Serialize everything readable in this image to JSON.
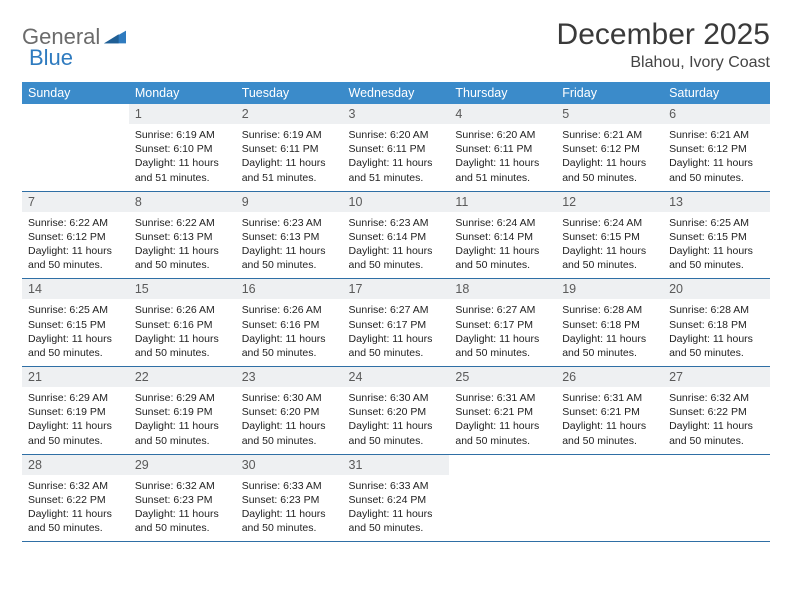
{
  "logo": {
    "text1": "General",
    "text2": "Blue"
  },
  "title": "December 2025",
  "location": "Blahou, Ivory Coast",
  "colors": {
    "header_bg": "#3b8bca",
    "header_fg": "#ffffff",
    "daynum_bg": "#eef0f2",
    "row_border": "#2f6fa5",
    "logo_gray": "#6b6b6b",
    "logo_blue": "#2f7bbf"
  },
  "days": [
    "Sunday",
    "Monday",
    "Tuesday",
    "Wednesday",
    "Thursday",
    "Friday",
    "Saturday"
  ],
  "weeks": [
    [
      null,
      {
        "n": "1",
        "sr": "Sunrise: 6:19 AM",
        "ss": "Sunset: 6:10 PM",
        "d1": "Daylight: 11 hours",
        "d2": "and 51 minutes."
      },
      {
        "n": "2",
        "sr": "Sunrise: 6:19 AM",
        "ss": "Sunset: 6:11 PM",
        "d1": "Daylight: 11 hours",
        "d2": "and 51 minutes."
      },
      {
        "n": "3",
        "sr": "Sunrise: 6:20 AM",
        "ss": "Sunset: 6:11 PM",
        "d1": "Daylight: 11 hours",
        "d2": "and 51 minutes."
      },
      {
        "n": "4",
        "sr": "Sunrise: 6:20 AM",
        "ss": "Sunset: 6:11 PM",
        "d1": "Daylight: 11 hours",
        "d2": "and 51 minutes."
      },
      {
        "n": "5",
        "sr": "Sunrise: 6:21 AM",
        "ss": "Sunset: 6:12 PM",
        "d1": "Daylight: 11 hours",
        "d2": "and 50 minutes."
      },
      {
        "n": "6",
        "sr": "Sunrise: 6:21 AM",
        "ss": "Sunset: 6:12 PM",
        "d1": "Daylight: 11 hours",
        "d2": "and 50 minutes."
      }
    ],
    [
      {
        "n": "7",
        "sr": "Sunrise: 6:22 AM",
        "ss": "Sunset: 6:12 PM",
        "d1": "Daylight: 11 hours",
        "d2": "and 50 minutes."
      },
      {
        "n": "8",
        "sr": "Sunrise: 6:22 AM",
        "ss": "Sunset: 6:13 PM",
        "d1": "Daylight: 11 hours",
        "d2": "and 50 minutes."
      },
      {
        "n": "9",
        "sr": "Sunrise: 6:23 AM",
        "ss": "Sunset: 6:13 PM",
        "d1": "Daylight: 11 hours",
        "d2": "and 50 minutes."
      },
      {
        "n": "10",
        "sr": "Sunrise: 6:23 AM",
        "ss": "Sunset: 6:14 PM",
        "d1": "Daylight: 11 hours",
        "d2": "and 50 minutes."
      },
      {
        "n": "11",
        "sr": "Sunrise: 6:24 AM",
        "ss": "Sunset: 6:14 PM",
        "d1": "Daylight: 11 hours",
        "d2": "and 50 minutes."
      },
      {
        "n": "12",
        "sr": "Sunrise: 6:24 AM",
        "ss": "Sunset: 6:15 PM",
        "d1": "Daylight: 11 hours",
        "d2": "and 50 minutes."
      },
      {
        "n": "13",
        "sr": "Sunrise: 6:25 AM",
        "ss": "Sunset: 6:15 PM",
        "d1": "Daylight: 11 hours",
        "d2": "and 50 minutes."
      }
    ],
    [
      {
        "n": "14",
        "sr": "Sunrise: 6:25 AM",
        "ss": "Sunset: 6:15 PM",
        "d1": "Daylight: 11 hours",
        "d2": "and 50 minutes."
      },
      {
        "n": "15",
        "sr": "Sunrise: 6:26 AM",
        "ss": "Sunset: 6:16 PM",
        "d1": "Daylight: 11 hours",
        "d2": "and 50 minutes."
      },
      {
        "n": "16",
        "sr": "Sunrise: 6:26 AM",
        "ss": "Sunset: 6:16 PM",
        "d1": "Daylight: 11 hours",
        "d2": "and 50 minutes."
      },
      {
        "n": "17",
        "sr": "Sunrise: 6:27 AM",
        "ss": "Sunset: 6:17 PM",
        "d1": "Daylight: 11 hours",
        "d2": "and 50 minutes."
      },
      {
        "n": "18",
        "sr": "Sunrise: 6:27 AM",
        "ss": "Sunset: 6:17 PM",
        "d1": "Daylight: 11 hours",
        "d2": "and 50 minutes."
      },
      {
        "n": "19",
        "sr": "Sunrise: 6:28 AM",
        "ss": "Sunset: 6:18 PM",
        "d1": "Daylight: 11 hours",
        "d2": "and 50 minutes."
      },
      {
        "n": "20",
        "sr": "Sunrise: 6:28 AM",
        "ss": "Sunset: 6:18 PM",
        "d1": "Daylight: 11 hours",
        "d2": "and 50 minutes."
      }
    ],
    [
      {
        "n": "21",
        "sr": "Sunrise: 6:29 AM",
        "ss": "Sunset: 6:19 PM",
        "d1": "Daylight: 11 hours",
        "d2": "and 50 minutes."
      },
      {
        "n": "22",
        "sr": "Sunrise: 6:29 AM",
        "ss": "Sunset: 6:19 PM",
        "d1": "Daylight: 11 hours",
        "d2": "and 50 minutes."
      },
      {
        "n": "23",
        "sr": "Sunrise: 6:30 AM",
        "ss": "Sunset: 6:20 PM",
        "d1": "Daylight: 11 hours",
        "d2": "and 50 minutes."
      },
      {
        "n": "24",
        "sr": "Sunrise: 6:30 AM",
        "ss": "Sunset: 6:20 PM",
        "d1": "Daylight: 11 hours",
        "d2": "and 50 minutes."
      },
      {
        "n": "25",
        "sr": "Sunrise: 6:31 AM",
        "ss": "Sunset: 6:21 PM",
        "d1": "Daylight: 11 hours",
        "d2": "and 50 minutes."
      },
      {
        "n": "26",
        "sr": "Sunrise: 6:31 AM",
        "ss": "Sunset: 6:21 PM",
        "d1": "Daylight: 11 hours",
        "d2": "and 50 minutes."
      },
      {
        "n": "27",
        "sr": "Sunrise: 6:32 AM",
        "ss": "Sunset: 6:22 PM",
        "d1": "Daylight: 11 hours",
        "d2": "and 50 minutes."
      }
    ],
    [
      {
        "n": "28",
        "sr": "Sunrise: 6:32 AM",
        "ss": "Sunset: 6:22 PM",
        "d1": "Daylight: 11 hours",
        "d2": "and 50 minutes."
      },
      {
        "n": "29",
        "sr": "Sunrise: 6:32 AM",
        "ss": "Sunset: 6:23 PM",
        "d1": "Daylight: 11 hours",
        "d2": "and 50 minutes."
      },
      {
        "n": "30",
        "sr": "Sunrise: 6:33 AM",
        "ss": "Sunset: 6:23 PM",
        "d1": "Daylight: 11 hours",
        "d2": "and 50 minutes."
      },
      {
        "n": "31",
        "sr": "Sunrise: 6:33 AM",
        "ss": "Sunset: 6:24 PM",
        "d1": "Daylight: 11 hours",
        "d2": "and 50 minutes."
      },
      null,
      null,
      null
    ]
  ]
}
